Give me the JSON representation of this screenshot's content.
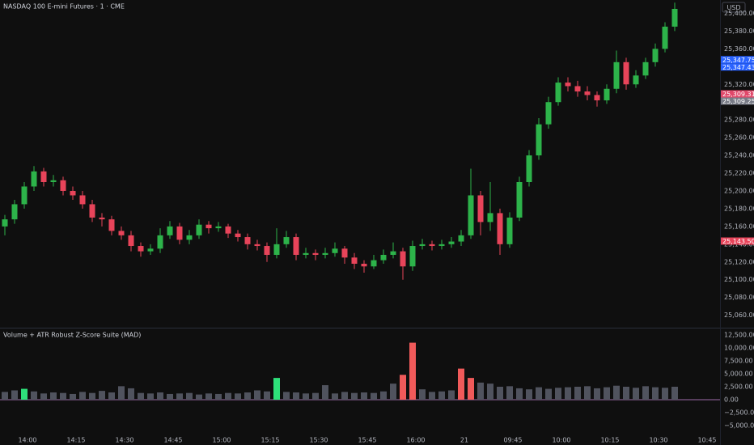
{
  "header": {
    "title": "NASDAQ 100 E-mini Futures · 1 · CME",
    "currency": "USD"
  },
  "chart_data": [
    {
      "type": "candlestick",
      "up_color": "#2db34a",
      "down_color": "#e8445a",
      "xlim": [
        -1.5,
        221
      ],
      "ylim": [
        25046,
        25415
      ],
      "yticks": [
        {
          "value": 25060,
          "label": "25,060.00"
        },
        {
          "value": 25080,
          "label": "25,080.00"
        },
        {
          "value": 25100,
          "label": "25,100.00"
        },
        {
          "value": 25120,
          "label": "25,120.00"
        },
        {
          "value": 25140,
          "label": "25,140.00"
        },
        {
          "value": 25160,
          "label": "25,160.00"
        },
        {
          "value": 25180,
          "label": "25,180.00"
        },
        {
          "value": 25200,
          "label": "25,200.00"
        },
        {
          "value": 25220,
          "label": "25,220.00"
        },
        {
          "value": 25240,
          "label": "25,240.00"
        },
        {
          "value": 25260,
          "label": "25,260.00"
        },
        {
          "value": 25280,
          "label": "25,280.00"
        },
        {
          "value": 25300,
          "label": "25,300.00"
        },
        {
          "value": 25320,
          "label": "25,320.00"
        },
        {
          "value": 25340,
          "label": "25,340.00"
        },
        {
          "value": 25360,
          "label": "25,360.00"
        },
        {
          "value": 25380,
          "label": "25,380.00"
        },
        {
          "value": 25400,
          "label": "25,400.00"
        }
      ],
      "price_labels": [
        {
          "value": 25347.75,
          "label": "25,347.75",
          "color": "#2962ff"
        },
        {
          "value": 25347.43,
          "label": "25,347.43",
          "color": "#2962ff"
        },
        {
          "value": 25309.31,
          "label": "25,309.31",
          "color": "#e0486a"
        },
        {
          "value": 25309.25,
          "label": "25,309.25",
          "color": "#787b86"
        },
        {
          "value": 25143.5,
          "label": "25,143.50",
          "color": "#e8445a"
        }
      ],
      "x": [
        0,
        3,
        6,
        9,
        12,
        15,
        18,
        21,
        24,
        27,
        30,
        33,
        36,
        39,
        42,
        45,
        48,
        51,
        54,
        57,
        60,
        63,
        66,
        69,
        72,
        75,
        78,
        81,
        84,
        87,
        90,
        93,
        96,
        99,
        102,
        105,
        108,
        111,
        114,
        117,
        120,
        123,
        126,
        129,
        132,
        135,
        138,
        141,
        144,
        147,
        150,
        153,
        156,
        159,
        162,
        165,
        168,
        171,
        174,
        177,
        180,
        183,
        186,
        189,
        192,
        195,
        198,
        201,
        204,
        207
      ],
      "ohlc": [
        [
          25160,
          25173,
          25150,
          25168
        ],
        [
          25168,
          25190,
          25163,
          25185
        ],
        [
          25185,
          25210,
          25180,
          25205
        ],
        [
          25205,
          25228,
          25200,
          25222
        ],
        [
          25222,
          25226,
          25205,
          25210
        ],
        [
          25210,
          25218,
          25205,
          25212
        ],
        [
          25212,
          25216,
          25195,
          25200
        ],
        [
          25200,
          25205,
          25190,
          25195
        ],
        [
          25195,
          25200,
          25180,
          25185
        ],
        [
          25185,
          25190,
          25165,
          25170
        ],
        [
          25170,
          25175,
          25160,
          25168
        ],
        [
          25168,
          25172,
          25150,
          25155
        ],
        [
          25155,
          25160,
          25145,
          25150
        ],
        [
          25150,
          25155,
          25132,
          25138
        ],
        [
          25138,
          25142,
          25126,
          25132
        ],
        [
          25132,
          25140,
          25128,
          25135
        ],
        [
          25135,
          25158,
          25130,
          25150
        ],
        [
          25150,
          25166,
          25146,
          25160
        ],
        [
          25160,
          25164,
          25140,
          25145
        ],
        [
          25145,
          25156,
          25140,
          25150
        ],
        [
          25150,
          25168,
          25146,
          25162
        ],
        [
          25162,
          25166,
          25152,
          25158
        ],
        [
          25158,
          25165,
          25154,
          25160
        ],
        [
          25160,
          25163,
          25147,
          25152
        ],
        [
          25152,
          25156,
          25143,
          25148
        ],
        [
          25148,
          25152,
          25134,
          25140
        ],
        [
          25140,
          25145,
          25133,
          25138
        ],
        [
          25138,
          25142,
          25120,
          25128
        ],
        [
          25128,
          25158,
          25124,
          25140
        ],
        [
          25140,
          25155,
          25136,
          25148
        ],
        [
          25148,
          25152,
          25122,
          25128
        ],
        [
          25128,
          25136,
          25124,
          25130
        ],
        [
          25130,
          25134,
          25122,
          25128
        ],
        [
          25128,
          25136,
          25124,
          25130
        ],
        [
          25130,
          25142,
          25126,
          25135
        ],
        [
          25135,
          25138,
          25118,
          25125
        ],
        [
          25125,
          25130,
          25112,
          25118
        ],
        [
          25118,
          25122,
          25108,
          25115
        ],
        [
          25115,
          25128,
          25112,
          25122
        ],
        [
          25122,
          25134,
          25118,
          25128
        ],
        [
          25128,
          25142,
          25124,
          25132
        ],
        [
          25132,
          25136,
          25100,
          25115
        ],
        [
          25115,
          25144,
          25110,
          25138
        ],
        [
          25138,
          25146,
          25134,
          25140
        ],
        [
          25140,
          25144,
          25133,
          25138
        ],
        [
          25138,
          25145,
          25134,
          25140
        ],
        [
          25140,
          25148,
          25136,
          25143
        ],
        [
          25143,
          25156,
          25138,
          25150
        ],
        [
          25150,
          25225,
          25146,
          25195
        ],
        [
          25195,
          25200,
          25150,
          25165
        ],
        [
          25165,
          25210,
          25155,
          25175
        ],
        [
          25175,
          25180,
          25128,
          25140
        ],
        [
          25140,
          25176,
          25136,
          25170
        ],
        [
          25170,
          25216,
          25166,
          25210
        ],
        [
          25210,
          25246,
          25205,
          25240
        ],
        [
          25240,
          25282,
          25235,
          25275
        ],
        [
          25275,
          25306,
          25270,
          25300
        ],
        [
          25300,
          25328,
          25296,
          25322
        ],
        [
          25322,
          25328,
          25312,
          25318
        ],
        [
          25318,
          25324,
          25306,
          25312
        ],
        [
          25312,
          25318,
          25302,
          25308
        ],
        [
          25308,
          25312,
          25295,
          25302
        ],
        [
          25302,
          25320,
          25298,
          25315
        ],
        [
          25315,
          25358,
          25310,
          25345
        ],
        [
          25345,
          25350,
          25314,
          25320
        ],
        [
          25320,
          25336,
          25316,
          25330
        ],
        [
          25330,
          25350,
          25326,
          25345
        ],
        [
          25345,
          25366,
          25340,
          25360
        ],
        [
          25360,
          25390,
          25356,
          25385
        ],
        [
          25385,
          25412,
          25380,
          25405
        ]
      ]
    },
    {
      "type": "bar",
      "title": "Volume + ATR Robust Z-Score Suite (MAD)",
      "xlim": [
        -1.5,
        221
      ],
      "ylim": [
        -6560,
        13900
      ],
      "yticks": [
        {
          "value": 12500,
          "label": "12,500.00"
        },
        {
          "value": 10000,
          "label": "10,000.00"
        },
        {
          "value": 7500,
          "label": "7,500.00"
        },
        {
          "value": 5000,
          "label": "5,000.00"
        },
        {
          "value": 2500,
          "label": "2,500.00"
        },
        {
          "value": 0,
          "label": "0.00"
        },
        {
          "value": -2500,
          "label": "−2,500.00"
        },
        {
          "value": -5000,
          "label": "−5,000.00"
        }
      ],
      "xticks": [
        {
          "value": 7,
          "label": "14:00"
        },
        {
          "value": 22,
          "label": "14:15"
        },
        {
          "value": 37,
          "label": "14:30"
        },
        {
          "value": 52,
          "label": "14:45"
        },
        {
          "value": 67,
          "label": "15:00"
        },
        {
          "value": 82,
          "label": "15:15"
        },
        {
          "value": 97,
          "label": "15:30"
        },
        {
          "value": 112,
          "label": "15:45"
        },
        {
          "value": 127,
          "label": "16:00"
        },
        {
          "value": 142,
          "label": "21"
        },
        {
          "value": 157,
          "label": "09:45"
        },
        {
          "value": 172,
          "label": "10:00"
        },
        {
          "value": 187,
          "label": "10:15"
        },
        {
          "value": 202,
          "label": "10:30"
        },
        {
          "value": 217,
          "label": "10:45"
        }
      ],
      "x": [
        0,
        3,
        6,
        9,
        12,
        15,
        18,
        21,
        24,
        27,
        30,
        33,
        36,
        39,
        42,
        45,
        48,
        51,
        54,
        57,
        60,
        63,
        66,
        69,
        72,
        75,
        78,
        81,
        84,
        87,
        90,
        93,
        96,
        99,
        102,
        105,
        108,
        111,
        114,
        117,
        120,
        123,
        126,
        129,
        132,
        135,
        138,
        141,
        144,
        147,
        150,
        153,
        156,
        159,
        162,
        165,
        168,
        171,
        174,
        177,
        180,
        183,
        186,
        189,
        192,
        195,
        198,
        201,
        204,
        207
      ],
      "series": [
        {
          "color": "#50535e",
          "values": [
            1500,
            1800,
            null,
            1600,
            1200,
            1400,
            1300,
            1100,
            1500,
            1300,
            1700,
            1400,
            2600,
            2200,
            1300,
            1200,
            1400,
            1100,
            1200,
            1300,
            1000,
            1200,
            1100,
            1300,
            1200,
            1400,
            1800,
            1600,
            null,
            1500,
            1400,
            1200,
            1300,
            2800,
            1200,
            1500,
            1300,
            1400,
            1300,
            1600,
            3100,
            null,
            null,
            2000,
            1500,
            1600,
            1800,
            null,
            null,
            3300,
            3100,
            2500,
            2600,
            2200,
            2000,
            2400,
            2100,
            2300,
            2400,
            2500,
            2600,
            2200,
            2400,
            2700,
            2500,
            2300,
            2600,
            2400,
            2300,
            2500
          ]
        },
        {
          "color": "#2ee07a",
          "values": [
            null,
            null,
            2100,
            null,
            null,
            null,
            null,
            null,
            null,
            null,
            null,
            null,
            null,
            null,
            null,
            null,
            null,
            null,
            null,
            null,
            null,
            null,
            null,
            null,
            null,
            null,
            null,
            null,
            4200,
            null,
            null,
            null,
            null,
            null,
            null,
            null,
            null,
            null,
            null,
            null,
            null,
            null,
            null,
            null,
            null,
            null,
            null,
            null,
            null,
            null,
            null,
            null,
            null,
            null,
            null,
            null,
            null,
            null,
            null,
            null,
            null,
            null,
            null,
            null,
            null,
            null,
            null,
            null,
            null,
            null
          ]
        },
        {
          "color": "#f05a5a",
          "values": [
            null,
            null,
            null,
            null,
            null,
            null,
            null,
            null,
            null,
            null,
            null,
            null,
            null,
            null,
            null,
            null,
            null,
            null,
            null,
            null,
            null,
            null,
            null,
            null,
            null,
            null,
            null,
            null,
            null,
            null,
            null,
            null,
            null,
            null,
            null,
            null,
            null,
            null,
            null,
            null,
            null,
            4800,
            11000,
            null,
            null,
            null,
            null,
            6000,
            4200,
            null,
            null,
            null,
            null,
            null,
            null,
            null,
            null,
            null,
            null,
            null,
            null,
            null,
            null,
            null,
            null,
            null,
            null,
            null,
            null,
            null
          ]
        }
      ]
    }
  ]
}
